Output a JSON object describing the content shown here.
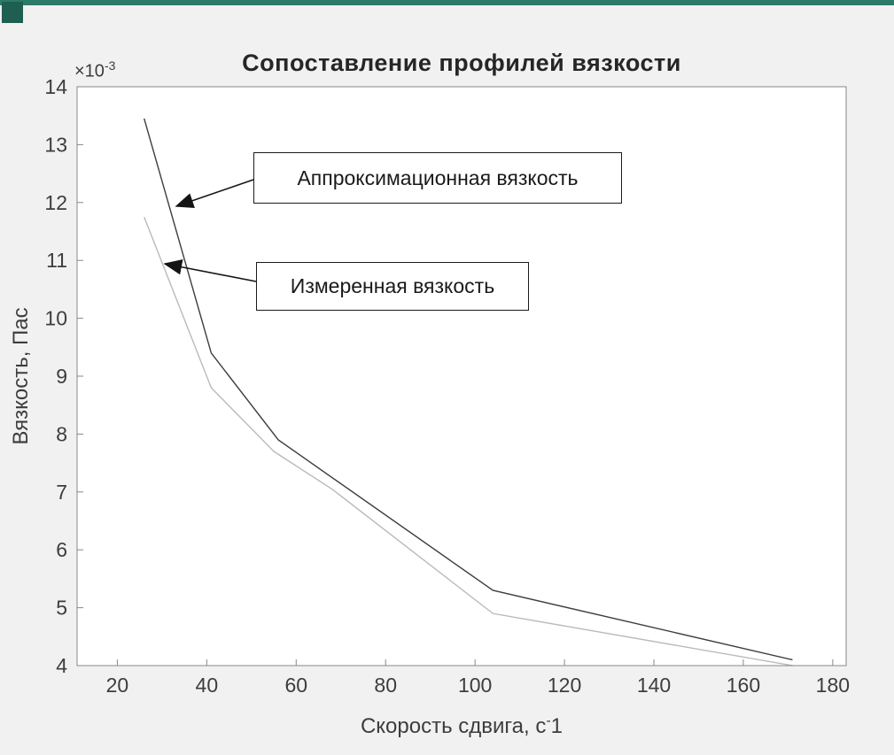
{
  "window": {
    "accent_bar_color": "#2c7a68",
    "accent_square_color": "#1f5f51"
  },
  "chart_data": {
    "type": "line",
    "title": "Сопоставление профилей вязкости",
    "xlabel": {
      "text": "Скорость сдвига, с",
      "sup": "-",
      "tail": "1"
    },
    "ylabel": "Вязкость, Пас",
    "y_axis_exponent": {
      "text": "×10",
      "sup": "-3"
    },
    "xlim": [
      11,
      183
    ],
    "ylim": [
      4,
      14
    ],
    "xticks": [
      20,
      40,
      60,
      80,
      100,
      120,
      140,
      160,
      180
    ],
    "yticks": [
      4,
      5,
      6,
      7,
      8,
      9,
      10,
      11,
      12,
      13,
      14
    ],
    "grid": false,
    "legend_position": "none",
    "axis_color": "#878787",
    "tick_label_color": "#3d3d3d",
    "series": [
      {
        "id": "approximation",
        "name": "Аппроксимационная вязкость",
        "color": "#3d3d3d",
        "x": [
          26,
          41,
          56,
          104,
          171
        ],
        "y": [
          13.45,
          9.4,
          7.9,
          5.3,
          4.1
        ]
      },
      {
        "id": "measured",
        "name": "Измеренная вязкость",
        "color": "#bababa",
        "x": [
          26,
          41,
          55,
          68,
          104,
          171
        ],
        "y": [
          11.75,
          8.8,
          7.7,
          7.05,
          4.9,
          4.0
        ]
      }
    ],
    "annotations": [
      {
        "label": "Аппроксимационная вязкость",
        "points_to": "approximation"
      },
      {
        "label": "Измеренная вязкость",
        "points_to": "measured"
      }
    ]
  }
}
